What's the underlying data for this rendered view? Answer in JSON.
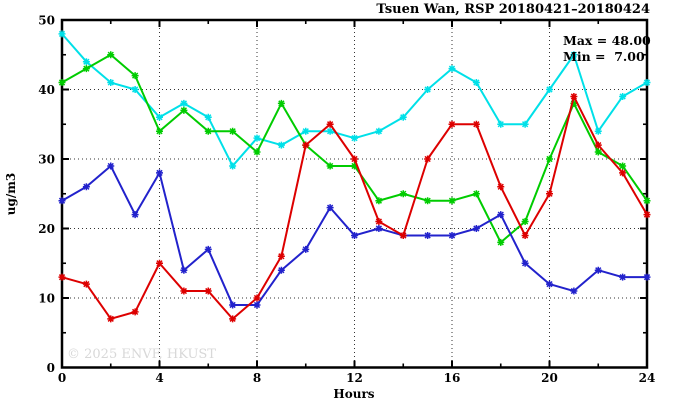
{
  "chart_data": {
    "type": "line",
    "title": "Tsuen Wan, RSP 20180421–20180424",
    "xlabel": "Hours",
    "ylabel": "ug/m3",
    "xlim": [
      0,
      24
    ],
    "ylim": [
      0,
      50
    ],
    "x_major_ticks": [
      0,
      4,
      8,
      12,
      16,
      20,
      24
    ],
    "x_minor_ticks": [
      2,
      6,
      10,
      14,
      18,
      22
    ],
    "y_major_ticks": [
      0,
      10,
      20,
      30,
      40,
      50
    ],
    "y_minor_ticks": [
      5,
      15,
      25,
      35,
      45
    ],
    "x_gridlines": [
      4,
      8,
      12,
      16,
      20
    ],
    "y_gridlines": [
      10,
      20,
      30,
      40
    ],
    "grid_on": true,
    "legend_position": "none",
    "x": [
      0,
      1,
      2,
      3,
      4,
      5,
      6,
      7,
      8,
      9,
      10,
      11,
      12,
      13,
      14,
      15,
      16,
      17,
      18,
      19,
      20,
      21,
      22,
      23,
      24
    ],
    "series": [
      {
        "name": "cyan",
        "color": "#00E0E8",
        "values": [
          48,
          44,
          41,
          40,
          36,
          38,
          36,
          29,
          33,
          32,
          34,
          34,
          33,
          34,
          36,
          40,
          43,
          41,
          35,
          35,
          40,
          45,
          34,
          39,
          41
        ]
      },
      {
        "name": "green",
        "color": "#00CC00",
        "values": [
          41,
          43,
          45,
          42,
          34,
          37,
          34,
          34,
          31,
          38,
          32,
          29,
          29,
          24,
          25,
          24,
          24,
          25,
          18,
          21,
          30,
          38,
          31,
          29,
          24
        ]
      },
      {
        "name": "blue",
        "color": "#2222CC",
        "values": [
          24,
          26,
          29,
          22,
          28,
          14,
          17,
          9,
          9,
          14,
          17,
          23,
          19,
          20,
          19,
          19,
          19,
          20,
          22,
          15,
          12,
          11,
          14,
          13,
          13
        ]
      },
      {
        "name": "red",
        "color": "#DD0000",
        "values": [
          13,
          12,
          7,
          8,
          15,
          11,
          11,
          7,
          10,
          16,
          32,
          35,
          30,
          21,
          19,
          30,
          35,
          35,
          26,
          19,
          25,
          39,
          32,
          28,
          22
        ]
      }
    ],
    "annotations": {
      "max_label": "Max = 48.00",
      "min_label": "Min =  7.00"
    },
    "watermark": "© 2025 ENVF, HKUST"
  }
}
